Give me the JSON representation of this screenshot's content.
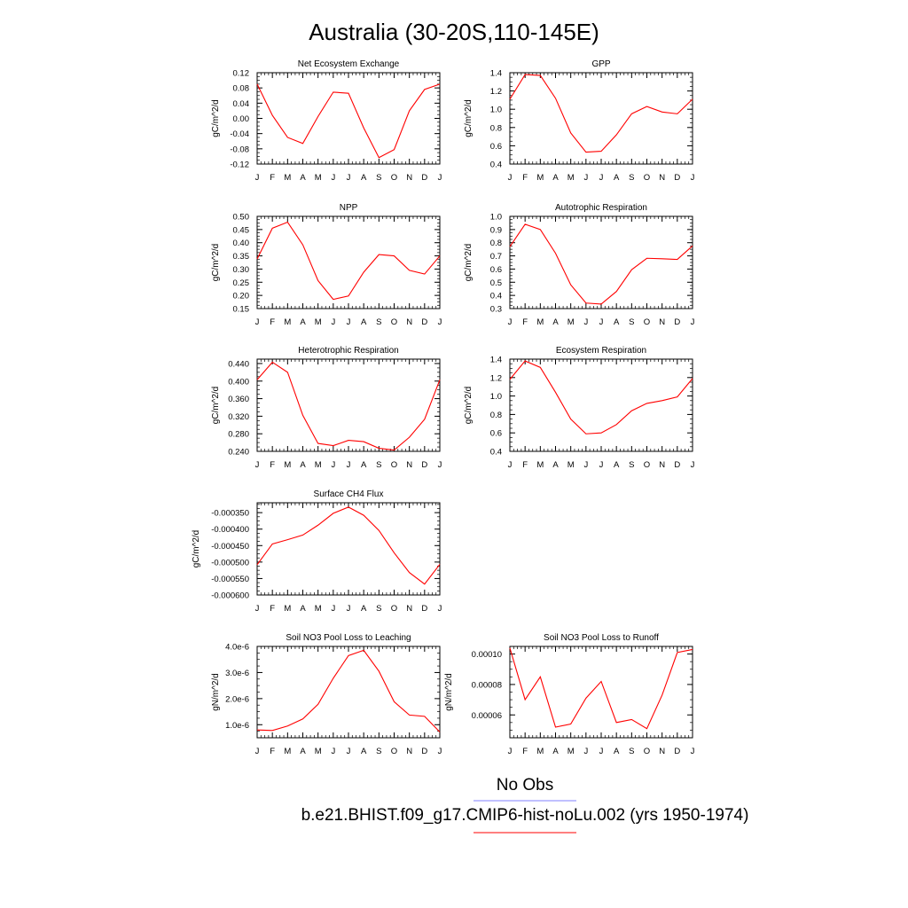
{
  "page_title": "Australia (30-20S,110-145E)",
  "legend": {
    "obs_label": "No Obs",
    "obs_color": "#8080ff",
    "model_label": "b.e21.BHIST.f09_g17.CMIP6-hist-noLu.002 (yrs 1950-1974)",
    "model_color": "#ff0000"
  },
  "chart_data": [
    {
      "type": "line",
      "title": "Net Ecosystem Exchange",
      "ylabel": "gC/m^2/d",
      "x": [
        "J",
        "F",
        "M",
        "A",
        "M",
        "J",
        "J",
        "A",
        "S",
        "O",
        "N",
        "D",
        "J"
      ],
      "ylim": [
        -0.12,
        0.12
      ],
      "yticks": [
        "0.12",
        "0.08",
        "0.04",
        "0.00",
        "-0.04",
        "-0.08",
        "-0.12"
      ],
      "ytick_values": [
        0.12,
        0.08,
        0.04,
        0.0,
        -0.04,
        -0.08,
        -0.12
      ],
      "series": [
        {
          "values": [
            0.09,
            0.008,
            -0.05,
            -0.066,
            0.005,
            0.069,
            0.066,
            -0.025,
            -0.103,
            -0.082,
            0.02,
            0.076,
            0.09
          ],
          "color": "#ff0000"
        }
      ]
    },
    {
      "type": "line",
      "title": "GPP",
      "ylabel": "gC/m^2/d",
      "x": [
        "J",
        "F",
        "M",
        "A",
        "M",
        "J",
        "J",
        "A",
        "S",
        "O",
        "N",
        "D",
        "J"
      ],
      "ylim": [
        0.4,
        1.4
      ],
      "yticks": [
        "1.4",
        "1.2",
        "1.0",
        "0.8",
        "0.6",
        "0.4"
      ],
      "ytick_values": [
        1.4,
        1.2,
        1.0,
        0.8,
        0.6,
        0.4
      ],
      "series": [
        {
          "values": [
            1.11,
            1.38,
            1.37,
            1.12,
            0.74,
            0.53,
            0.54,
            0.72,
            0.95,
            1.03,
            0.97,
            0.95,
            1.11
          ],
          "color": "#ff0000"
        }
      ]
    },
    {
      "type": "line",
      "title": "NPP",
      "ylabel": "gC/m^2/d",
      "x": [
        "J",
        "F",
        "M",
        "A",
        "M",
        "J",
        "J",
        "A",
        "S",
        "O",
        "N",
        "D",
        "J"
      ],
      "ylim": [
        0.15,
        0.5
      ],
      "yticks": [
        "0.50",
        "0.45",
        "0.40",
        "0.35",
        "0.30",
        "0.25",
        "0.20",
        "0.15"
      ],
      "ytick_values": [
        0.5,
        0.45,
        0.4,
        0.35,
        0.3,
        0.25,
        0.2,
        0.15
      ],
      "series": [
        {
          "values": [
            0.338,
            0.455,
            0.478,
            0.392,
            0.256,
            0.185,
            0.198,
            0.288,
            0.355,
            0.35,
            0.295,
            0.281,
            0.35
          ],
          "color": "#ff0000"
        }
      ]
    },
    {
      "type": "line",
      "title": "Autotrophic Respiration",
      "ylabel": "gC/m^2/d",
      "x": [
        "J",
        "F",
        "M",
        "A",
        "M",
        "J",
        "J",
        "A",
        "S",
        "O",
        "N",
        "D",
        "J"
      ],
      "ylim": [
        0.3,
        1.0
      ],
      "yticks": [
        "1.0",
        "0.9",
        "0.8",
        "0.7",
        "0.6",
        "0.5",
        "0.4",
        "0.3"
      ],
      "ytick_values": [
        1.0,
        0.9,
        0.8,
        0.7,
        0.6,
        0.5,
        0.4,
        0.3
      ],
      "series": [
        {
          "values": [
            0.77,
            0.94,
            0.9,
            0.72,
            0.48,
            0.342,
            0.334,
            0.43,
            0.595,
            0.682,
            0.678,
            0.673,
            0.776
          ],
          "color": "#ff0000"
        }
      ]
    },
    {
      "type": "line",
      "title": "Heterotrophic Respiration",
      "ylabel": "gC/m^2/d",
      "x": [
        "J",
        "F",
        "M",
        "A",
        "M",
        "J",
        "J",
        "A",
        "S",
        "O",
        "N",
        "D",
        "J"
      ],
      "ylim": [
        0.24,
        0.45
      ],
      "yticks": [
        "0.440",
        "0.400",
        "0.360",
        "0.320",
        "0.280",
        "0.240"
      ],
      "ytick_values": [
        0.44,
        0.4,
        0.36,
        0.32,
        0.28,
        0.24
      ],
      "series": [
        {
          "values": [
            0.403,
            0.443,
            0.42,
            0.322,
            0.258,
            0.253,
            0.265,
            0.262,
            0.247,
            0.243,
            0.272,
            0.313,
            0.403
          ],
          "color": "#ff0000"
        }
      ]
    },
    {
      "type": "line",
      "title": "Ecosystem Respiration",
      "ylabel": "gC/m^2/d",
      "x": [
        "J",
        "F",
        "M",
        "A",
        "M",
        "J",
        "J",
        "A",
        "S",
        "O",
        "N",
        "D",
        "J"
      ],
      "ylim": [
        0.4,
        1.4
      ],
      "yticks": [
        "1.4",
        "1.2",
        "1.0",
        "0.8",
        "0.6",
        "0.4"
      ],
      "ytick_values": [
        1.4,
        1.2,
        1.0,
        0.8,
        0.6,
        0.4
      ],
      "series": [
        {
          "values": [
            1.18,
            1.38,
            1.31,
            1.04,
            0.75,
            0.59,
            0.6,
            0.69,
            0.84,
            0.92,
            0.95,
            0.99,
            1.19
          ],
          "color": "#ff0000"
        }
      ]
    },
    {
      "type": "line",
      "title": "Surface CH4 Flux",
      "ylabel": "gC/m^2/d",
      "x": [
        "J",
        "F",
        "M",
        "A",
        "M",
        "J",
        "J",
        "A",
        "S",
        "O",
        "N",
        "D",
        "J"
      ],
      "ylim": [
        -0.0006,
        -0.00032
      ],
      "yticks": [
        "-0.000350",
        "-0.000400",
        "-0.000450",
        "-0.000500",
        "-0.000550",
        "-0.000600"
      ],
      "ytick_values": [
        -0.00035,
        -0.0004,
        -0.00045,
        -0.0005,
        -0.00055,
        -0.0006
      ],
      "series": [
        {
          "values": [
            -0.000508,
            -0.000445,
            -0.000432,
            -0.000418,
            -0.000388,
            -0.000352,
            -0.000333,
            -0.000358,
            -0.000404,
            -0.000472,
            -0.000532,
            -0.000567,
            -0.000507
          ],
          "color": "#ff0000"
        }
      ]
    },
    {
      "type": "line",
      "title": "Soil NO3 Pool Loss to Leaching",
      "ylabel": "gN/m^2/d",
      "x": [
        "J",
        "F",
        "M",
        "A",
        "M",
        "J",
        "J",
        "A",
        "S",
        "O",
        "N",
        "D",
        "J"
      ],
      "ylim": [
        0.0,
        4e-06
      ],
      "yticks": [
        "4.0e-6",
        "3.0e-6",
        "2.0e-6",
        "1.0e-6"
      ],
      "ytick_values": [
        4e-06,
        3e-06,
        2e-06,
        1e-06
      ],
      "ylim_display": [
        5e-07,
        4e-06
      ],
      "series": [
        {
          "values": [
            8e-07,
            7.8e-07,
            9.5e-07,
            1.22e-06,
            1.78e-06,
            2.78e-06,
            3.65e-06,
            3.85e-06,
            3.05e-06,
            1.88e-06,
            1.37e-06,
            1.32e-06,
            7.2e-07
          ],
          "color": "#ff0000"
        }
      ]
    },
    {
      "type": "line",
      "title": "Soil NO3 Pool Loss to Runoff",
      "ylabel": "gN/m^2/d",
      "x": [
        "J",
        "F",
        "M",
        "A",
        "M",
        "J",
        "J",
        "A",
        "S",
        "O",
        "N",
        "D",
        "J"
      ],
      "ylim": [
        4.5e-05,
        0.000105
      ],
      "yticks": [
        "0.00010",
        "0.00008",
        "0.00006"
      ],
      "ytick_values": [
        0.0001,
        8e-05,
        6e-05
      ],
      "series": [
        {
          "values": [
            0.000104,
            7e-05,
            8.5e-05,
            5.2e-05,
            5.4e-05,
            7.1e-05,
            8.2e-05,
            5.5e-05,
            5.7e-05,
            5.1e-05,
            7.3e-05,
            0.000101,
            0.000103
          ],
          "color": "#ff0000"
        }
      ]
    }
  ]
}
